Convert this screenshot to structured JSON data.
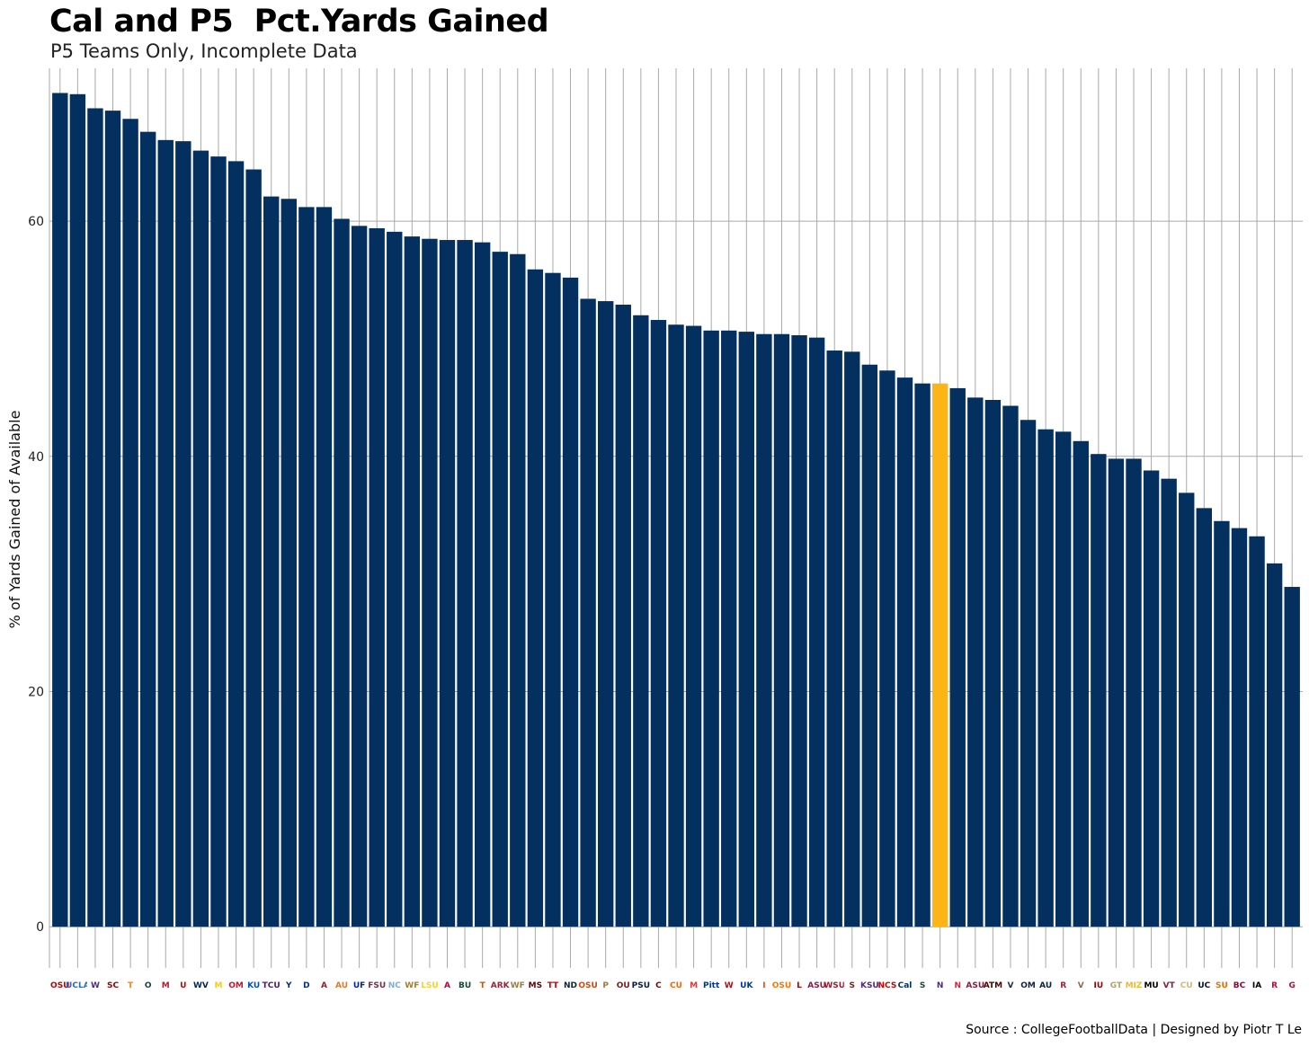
{
  "header": {
    "title": "Cal and P5  Pct.Yards Gained",
    "subtitle": "P5 Teams Only, Incomplete Data"
  },
  "footer": {
    "caption": "Source : CollegeFootballData | Designed by Piotr T Le"
  },
  "colors": {
    "bar": "#03305f",
    "highlight": "#fdb515",
    "grid": "#a9a9a9"
  },
  "chart_data": {
    "type": "bar",
    "ylabel": "% of Yards Gained of Available",
    "xlabel": "",
    "ylim": [
      -3.5,
      73
    ],
    "yticks": [
      0,
      20,
      40,
      60
    ],
    "grid": true,
    "highlight_index": 50,
    "categories": [
      {
        "name": "Ohio State",
        "logo": "OSU",
        "color": "#bb0000"
      },
      {
        "name": "UCLA",
        "logo": "UCLA",
        "color": "#2d68c4"
      },
      {
        "name": "Washington",
        "logo": "W",
        "color": "#4b2e83"
      },
      {
        "name": "USC",
        "logo": "SC",
        "color": "#990000"
      },
      {
        "name": "Tennessee",
        "logo": "T",
        "color": "#ff8200"
      },
      {
        "name": "Oregon",
        "logo": "O",
        "color": "#154733"
      },
      {
        "name": "Mississippi",
        "logo": "M",
        "color": "#ce1126"
      },
      {
        "name": "Utah",
        "logo": "U",
        "color": "#cc0000"
      },
      {
        "name": "West Virginia",
        "logo": "WV",
        "color": "#002855"
      },
      {
        "name": "Michigan",
        "logo": "M",
        "color": "#ffcb05"
      },
      {
        "name": "Ole Miss",
        "logo": "OM",
        "color": "#ce1126"
      },
      {
        "name": "Kansas",
        "logo": "KU",
        "color": "#0051ba"
      },
      {
        "name": "TCU",
        "logo": "TCU",
        "color": "#4d1979"
      },
      {
        "name": "BYU",
        "logo": "Y",
        "color": "#002e5d"
      },
      {
        "name": "Duke",
        "logo": "D",
        "color": "#003087"
      },
      {
        "name": "Alabama",
        "logo": "A",
        "color": "#9e1b32"
      },
      {
        "name": "Auburn",
        "logo": "AU",
        "color": "#e87722"
      },
      {
        "name": "Florida",
        "logo": "UF",
        "color": "#0021a5"
      },
      {
        "name": "Florida State",
        "logo": "FSU",
        "color": "#782f40"
      },
      {
        "name": "North Carolina",
        "logo": "NC",
        "color": "#7bafd4"
      },
      {
        "name": "Wake Forest",
        "logo": "WF",
        "color": "#9e7e38"
      },
      {
        "name": "LSU",
        "logo": "LSU",
        "color": "#fdd023"
      },
      {
        "name": "Arizona",
        "logo": "A",
        "color": "#cc0033"
      },
      {
        "name": "Baylor",
        "logo": "BU",
        "color": "#154734"
      },
      {
        "name": "Texas",
        "logo": "T",
        "color": "#bf5700"
      },
      {
        "name": "Arkansas",
        "logo": "ARK",
        "color": "#9d2235"
      },
      {
        "name": "Wake Forest",
        "logo": "WF",
        "color": "#9e7e38"
      },
      {
        "name": "Mississippi State",
        "logo": "MS",
        "color": "#660000"
      },
      {
        "name": "Texas Tech",
        "logo": "TT",
        "color": "#cc0000"
      },
      {
        "name": "Notre Dame",
        "logo": "ND",
        "color": "#0c2340"
      },
      {
        "name": "Oregon State",
        "logo": "OSU",
        "color": "#dc4405"
      },
      {
        "name": "Purdue",
        "logo": "P",
        "color": "#9c7c38"
      },
      {
        "name": "Oklahoma",
        "logo": "OU",
        "color": "#841617"
      },
      {
        "name": "Penn State",
        "logo": "PSU",
        "color": "#041e42"
      },
      {
        "name": "South Carolina",
        "logo": "C",
        "color": "#73000a"
      },
      {
        "name": "Clemson",
        "logo": "CU",
        "color": "#f56600"
      },
      {
        "name": "Maryland",
        "logo": "M",
        "color": "#e03a3e"
      },
      {
        "name": "Pittsburgh",
        "logo": "Pitt",
        "color": "#003594"
      },
      {
        "name": "Wisconsin",
        "logo": "W",
        "color": "#c5050c"
      },
      {
        "name": "Kentucky",
        "logo": "UK",
        "color": "#0033a0"
      },
      {
        "name": "Illinois",
        "logo": "I",
        "color": "#e84a27"
      },
      {
        "name": "Oklahoma State",
        "logo": "OSU",
        "color": "#ff7300"
      },
      {
        "name": "Louisville",
        "logo": "L",
        "color": "#ad0000"
      },
      {
        "name": "Arizona State",
        "logo": "ASU",
        "color": "#8c1d40"
      },
      {
        "name": "Washington State",
        "logo": "WSU",
        "color": "#981e32"
      },
      {
        "name": "Stanford",
        "logo": "S",
        "color": "#8c1515"
      },
      {
        "name": "Kansas State",
        "logo": "KSU",
        "color": "#512888"
      },
      {
        "name": "NC State",
        "logo": "NCS",
        "color": "#cc0000"
      },
      {
        "name": "Cal",
        "logo": "Cal",
        "color": "#003262"
      },
      {
        "name": "Michigan State",
        "logo": "S",
        "color": "#18453b"
      },
      {
        "name": "Northwestern",
        "logo": "N",
        "color": "#4e2a84"
      },
      {
        "name": "Nebraska",
        "logo": "N",
        "color": "#e41c38"
      },
      {
        "name": "Arizona State",
        "logo": "ASU",
        "color": "#8c1d40"
      },
      {
        "name": "Texas A&M",
        "logo": "ATM",
        "color": "#500000"
      },
      {
        "name": "Virginia",
        "logo": "V",
        "color": "#232d4b"
      },
      {
        "name": "Ole Miss",
        "logo": "OM",
        "color": "#14213d"
      },
      {
        "name": "Auburn",
        "logo": "AU",
        "color": "#0c2340"
      },
      {
        "name": "Arkansas",
        "logo": "R",
        "color": "#9d2235"
      },
      {
        "name": "Vanderbilt",
        "logo": "V",
        "color": "#866d4b"
      },
      {
        "name": "Indiana",
        "logo": "IU",
        "color": "#990000"
      },
      {
        "name": "Georgia Tech",
        "logo": "GT",
        "color": "#b3a369"
      },
      {
        "name": "Missouri",
        "logo": "MIZ",
        "color": "#f1b82d"
      },
      {
        "name": "Missouri",
        "logo": "MU",
        "color": "#000000"
      },
      {
        "name": "Virginia Tech",
        "logo": "VT",
        "color": "#861f41"
      },
      {
        "name": "Colorado",
        "logo": "CU",
        "color": "#cfb87c"
      },
      {
        "name": "UConn",
        "logo": "UC",
        "color": "#000e2f"
      },
      {
        "name": "Syracuse",
        "logo": "SU",
        "color": "#f76900"
      },
      {
        "name": "Boston College",
        "logo": "BC",
        "color": "#98002e"
      },
      {
        "name": "Iowa",
        "logo": "IA",
        "color": "#000000"
      },
      {
        "name": "Rutgers",
        "logo": "R",
        "color": "#cc0033"
      },
      {
        "name": "Georgia",
        "logo": "G",
        "color": "#ba0c2f"
      }
    ],
    "values": [
      70.9,
      70.8,
      69.6,
      69.4,
      68.7,
      67.6,
      66.9,
      66.8,
      66.0,
      65.5,
      65.1,
      64.4,
      62.1,
      61.9,
      61.2,
      61.2,
      60.2,
      59.6,
      59.4,
      59.1,
      58.7,
      58.5,
      58.4,
      58.4,
      58.2,
      57.4,
      57.2,
      55.9,
      55.6,
      55.2,
      53.4,
      53.2,
      52.9,
      52.0,
      51.6,
      51.2,
      51.1,
      50.7,
      50.7,
      50.6,
      50.4,
      50.4,
      50.3,
      50.1,
      49.0,
      48.9,
      47.8,
      47.3,
      46.7,
      46.2,
      46.2,
      45.8,
      45.0,
      44.8,
      44.3,
      43.1,
      42.3,
      42.1,
      41.3,
      40.2,
      39.8,
      39.8,
      38.8,
      38.1,
      36.9,
      35.6,
      34.5,
      33.9,
      33.2,
      30.9,
      28.9
    ]
  }
}
